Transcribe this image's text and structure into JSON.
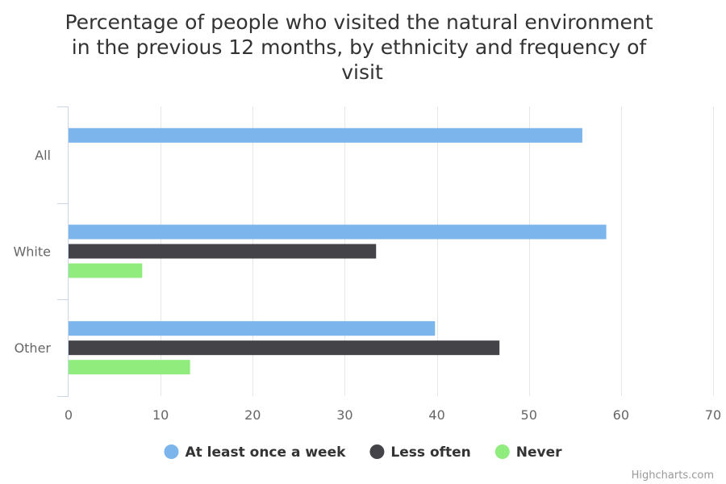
{
  "chart_data": {
    "type": "bar",
    "orientation": "horizontal",
    "title_lines": [
      "Percentage of people who visited the natural environment",
      "in the previous 12 months, by ethnicity and frequency of",
      "visit"
    ],
    "categories": [
      "All",
      "White",
      "Other"
    ],
    "series": [
      {
        "name": "At least once a week",
        "color": "#7cb5ec",
        "values": [
          55.8,
          58.4,
          39.8
        ]
      },
      {
        "name": "Less often",
        "color": "#434348",
        "values": [
          null,
          33.4,
          46.8
        ]
      },
      {
        "name": "Never",
        "color": "#90ed7d",
        "values": [
          null,
          8.0,
          13.2
        ]
      }
    ],
    "xlim": [
      0,
      70
    ],
    "ticks": [
      0,
      10,
      20,
      30,
      40,
      50,
      60,
      70
    ],
    "grid": true,
    "legend_position": "bottom-center",
    "credits": "Highcharts.com"
  }
}
